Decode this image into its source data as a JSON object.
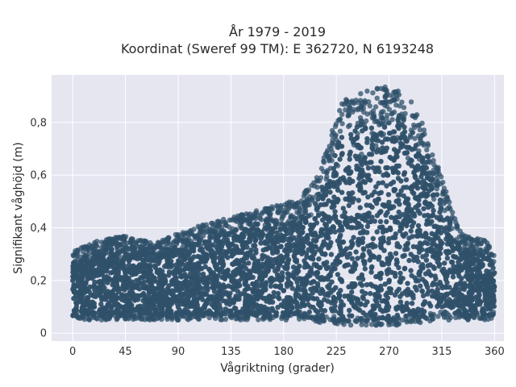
{
  "chart_data": {
    "type": "scatter",
    "title": "År 1979 - 2019",
    "subtitle": "Koordinat (Sweref 99 TM): E 362720, N 6193248",
    "xlabel": "Vågriktning (grader)",
    "ylabel": "Signifikant våghöjd (m)",
    "xlim": [
      -18,
      368
    ],
    "ylim": [
      -0.03,
      0.98
    ],
    "x_ticks": [
      {
        "value": 0,
        "label": "0"
      },
      {
        "value": 45,
        "label": "45"
      },
      {
        "value": 90,
        "label": "90"
      },
      {
        "value": 135,
        "label": "135"
      },
      {
        "value": 180,
        "label": "180"
      },
      {
        "value": 225,
        "label": "225"
      },
      {
        "value": 270,
        "label": "270"
      },
      {
        "value": 315,
        "label": "315"
      },
      {
        "value": 360,
        "label": "360"
      }
    ],
    "y_ticks": [
      {
        "value": 0,
        "label": "0"
      },
      {
        "value": 0.2,
        "label": "0,2"
      },
      {
        "value": 0.4,
        "label": "0,4"
      },
      {
        "value": 0.6,
        "label": "0,6"
      },
      {
        "value": 0.8,
        "label": "0,8"
      }
    ],
    "grid": true,
    "marker_color": "#2f5069",
    "plot_background": "#e5e6f0",
    "envelope": {
      "direction": [
        0,
        20,
        45,
        70,
        90,
        110,
        135,
        160,
        180,
        195,
        210,
        220,
        230,
        240,
        250,
        260,
        270,
        280,
        290,
        300,
        310,
        320,
        330,
        340,
        350,
        360
      ],
      "min_height": [
        0.05,
        0.05,
        0.05,
        0.05,
        0.05,
        0.05,
        0.05,
        0.05,
        0.05,
        0.05,
        0.04,
        0.04,
        0.03,
        0.03,
        0.03,
        0.03,
        0.03,
        0.03,
        0.04,
        0.04,
        0.05,
        0.05,
        0.05,
        0.05,
        0.05,
        0.05
      ],
      "max_height": [
        0.31,
        0.35,
        0.37,
        0.34,
        0.38,
        0.41,
        0.44,
        0.47,
        0.49,
        0.52,
        0.6,
        0.75,
        0.88,
        0.9,
        0.92,
        0.93,
        0.94,
        0.92,
        0.88,
        0.78,
        0.66,
        0.52,
        0.39,
        0.36,
        0.36,
        0.32
      ]
    },
    "marker_description": "dense cloud of semi-transparent circular markers"
  }
}
